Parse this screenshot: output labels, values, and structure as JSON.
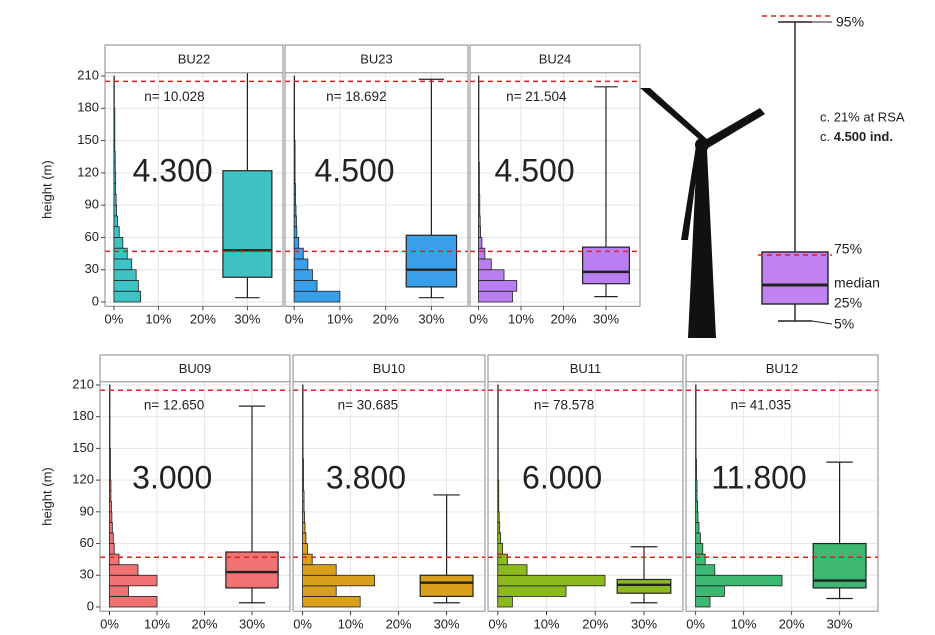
{
  "chart_data": [
    {
      "type": "histbox",
      "title": "BU22",
      "annotation": "n= 10.028",
      "estimate": "4.300",
      "ylabel": "height (m)",
      "show_ytick_labels": true,
      "color": "#3ec2c2",
      "grid": true,
      "bins": [
        0,
        10,
        20,
        30,
        40,
        50,
        60,
        70,
        80,
        90,
        100,
        110,
        120,
        130,
        140,
        150,
        160,
        170,
        180,
        190,
        200,
        210
      ],
      "counts": [
        6,
        5.5,
        5,
        4,
        3,
        2,
        1.2,
        0.8,
        0.6,
        0.5,
        0.4,
        0.4,
        0.3,
        0.3,
        0.2,
        0.2,
        0.2,
        0.2,
        0.1,
        0.1,
        0.1
      ],
      "box": {
        "whisker_low": 4,
        "q1": 23,
        "median": 48,
        "q3": 122,
        "whisker_high": 222
      },
      "reference_lines": [
        47,
        205
      ],
      "ylim": [
        -4,
        213
      ],
      "yticks": [
        0,
        30,
        60,
        90,
        120,
        150,
        180,
        210
      ],
      "xlim": [
        -2,
        38
      ],
      "xticks": [
        {
          "value": 0,
          "label": "0%"
        },
        {
          "value": 10,
          "label": "10%"
        },
        {
          "value": 20,
          "label": "20%"
        },
        {
          "value": 30,
          "label": "30%"
        }
      ]
    },
    {
      "type": "histbox",
      "title": "BU23",
      "annotation": "n= 18.692",
      "estimate": "4.500",
      "show_ytick_labels": false,
      "color": "#3a9fe8",
      "grid": true,
      "bins": [
        0,
        10,
        20,
        30,
        40,
        50,
        60,
        70,
        80,
        90,
        100,
        110,
        120,
        130,
        140,
        150,
        160,
        170,
        180,
        190,
        200,
        210
      ],
      "counts": [
        10,
        5,
        4,
        3,
        2,
        1,
        0.6,
        0.5,
        0.4,
        0.3,
        0.3,
        0.2,
        0.2,
        0.2,
        0.2,
        0.1,
        0.1,
        0.1,
        0.1,
        0.1,
        0.1
      ],
      "box": {
        "whisker_low": 4,
        "q1": 14,
        "median": 30,
        "q3": 62,
        "whisker_high": 207
      },
      "reference_lines": [
        47,
        205
      ],
      "ylim": [
        -4,
        213
      ],
      "yticks": [
        0,
        30,
        60,
        90,
        120,
        150,
        180,
        210
      ],
      "xlim": [
        -2,
        38
      ],
      "xticks": [
        {
          "value": 0,
          "label": "0%"
        },
        {
          "value": 10,
          "label": "10%"
        },
        {
          "value": 20,
          "label": "20%"
        },
        {
          "value": 30,
          "label": "30%"
        }
      ]
    },
    {
      "type": "histbox",
      "title": "BU24",
      "annotation": "n= 21.504",
      "estimate": "4.500",
      "show_ytick_labels": false,
      "color": "#b97ef0",
      "grid": true,
      "bins": [
        0,
        10,
        20,
        30,
        40,
        50,
        60,
        70,
        80,
        90,
        100,
        110,
        120,
        130,
        140,
        150,
        160,
        170,
        180,
        190,
        200,
        210
      ],
      "counts": [
        8,
        9,
        6,
        3,
        1.5,
        0.8,
        0.5,
        0.4,
        0.3,
        0.3,
        0.2,
        0.2,
        0.2,
        0.1,
        0.1,
        0.1,
        0.1,
        0.1,
        0.1,
        0.1,
        0.1
      ],
      "box": {
        "whisker_low": 5,
        "q1": 17,
        "median": 28,
        "q3": 51,
        "whisker_high": 200
      },
      "reference_lines": [
        47,
        205
      ],
      "ylim": [
        -4,
        213
      ],
      "yticks": [
        0,
        30,
        60,
        90,
        120,
        150,
        180,
        210
      ],
      "xlim": [
        -2,
        38
      ],
      "xticks": [
        {
          "value": 0,
          "label": "0%"
        },
        {
          "value": 10,
          "label": "10%"
        },
        {
          "value": 20,
          "label": "20%"
        },
        {
          "value": 30,
          "label": "30%"
        }
      ]
    },
    {
      "type": "histbox",
      "title": "BU09",
      "annotation": "n= 12.650",
      "estimate": "3.000",
      "ylabel": "height (m)",
      "show_ytick_labels": true,
      "color": "#f07272",
      "grid": true,
      "bins": [
        0,
        10,
        20,
        30,
        40,
        50,
        60,
        70,
        80,
        90,
        100,
        110,
        120,
        130,
        140,
        150,
        160,
        170,
        180,
        190,
        200,
        210
      ],
      "counts": [
        10,
        4,
        10,
        6,
        2,
        1,
        0.8,
        0.6,
        0.5,
        0.4,
        0.3,
        0.3,
        0.2,
        0.2,
        0.2,
        0.1,
        0.1,
        0.1,
        0.1,
        0.1,
        0.1
      ],
      "box": {
        "whisker_low": 4,
        "q1": 18,
        "median": 33,
        "q3": 52,
        "whisker_high": 190
      },
      "reference_lines": [
        47,
        205
      ],
      "ylim": [
        -4,
        213
      ],
      "yticks": [
        0,
        30,
        60,
        90,
        120,
        150,
        180,
        210
      ],
      "xlim": [
        -2,
        38
      ],
      "xticks": [
        {
          "value": 0,
          "label": "0%"
        },
        {
          "value": 10,
          "label": "10%"
        },
        {
          "value": 20,
          "label": "20%"
        },
        {
          "value": 30,
          "label": "30%"
        }
      ]
    },
    {
      "type": "histbox",
      "title": "BU10",
      "annotation": "n= 30.685",
      "estimate": "3.800",
      "show_ytick_labels": false,
      "color": "#d9a01e",
      "grid": true,
      "bins": [
        0,
        10,
        20,
        30,
        40,
        50,
        60,
        70,
        80,
        90,
        100,
        110,
        120,
        130,
        140,
        150,
        160,
        170,
        180,
        190,
        200,
        210
      ],
      "counts": [
        12,
        7,
        15,
        7,
        2,
        1,
        0.7,
        0.5,
        0.4,
        0.3,
        0.3,
        0.2,
        0.2,
        0.2,
        0.1,
        0.1,
        0.1,
        0.1,
        0.1,
        0.1,
        0.1
      ],
      "box": {
        "whisker_low": 4,
        "q1": 10,
        "median": 23,
        "q3": 30,
        "whisker_high": 106
      },
      "reference_lines": [
        47,
        205
      ],
      "ylim": [
        -4,
        213
      ],
      "yticks": [
        0,
        30,
        60,
        90,
        120,
        150,
        180,
        210
      ],
      "xlim": [
        -2,
        38
      ],
      "xticks": [
        {
          "value": 0,
          "label": "0%"
        },
        {
          "value": 10,
          "label": "10%"
        },
        {
          "value": 20,
          "label": "20%"
        },
        {
          "value": 30,
          "label": "30%"
        }
      ]
    },
    {
      "type": "histbox",
      "title": "BU11",
      "annotation": "n= 78.578",
      "estimate": "6.000",
      "show_ytick_labels": false,
      "color": "#8cba1e",
      "grid": true,
      "bins": [
        0,
        10,
        20,
        30,
        40,
        50,
        60,
        70,
        80,
        90,
        100,
        110,
        120,
        130,
        140,
        150,
        160,
        170,
        180,
        190,
        200,
        210
      ],
      "counts": [
        3,
        14,
        22,
        6,
        2,
        1,
        0.6,
        0.4,
        0.3,
        0.2,
        0.2,
        0.2,
        0.1,
        0.1,
        0.1,
        0.1,
        0.1,
        0.1,
        0.1,
        0.1,
        0.1
      ],
      "box": {
        "whisker_low": 4,
        "q1": 13,
        "median": 21,
        "q3": 26,
        "whisker_high": 57
      },
      "reference_lines": [
        47,
        205
      ],
      "ylim": [
        -4,
        213
      ],
      "yticks": [
        0,
        30,
        60,
        90,
        120,
        150,
        180,
        210
      ],
      "xlim": [
        -2,
        38
      ],
      "xticks": [
        {
          "value": 0,
          "label": "0%"
        },
        {
          "value": 10,
          "label": "10%"
        },
        {
          "value": 20,
          "label": "20%"
        },
        {
          "value": 30,
          "label": "30%"
        }
      ]
    },
    {
      "type": "histbox",
      "title": "BU12",
      "annotation": "n= 41.035",
      "estimate": "11.800",
      "show_ytick_labels": false,
      "color": "#3cb872",
      "grid": true,
      "bins": [
        0,
        10,
        20,
        30,
        40,
        50,
        60,
        70,
        80,
        90,
        100,
        110,
        120,
        130,
        140,
        150,
        160,
        170,
        180,
        190,
        200,
        210
      ],
      "counts": [
        3,
        6,
        18,
        4,
        2,
        1.5,
        1,
        0.7,
        0.5,
        0.4,
        0.3,
        0.3,
        0.2,
        0.2,
        0.1,
        0.1,
        0.1,
        0.1,
        0.1,
        0.1,
        0.1
      ],
      "box": {
        "whisker_low": 8,
        "q1": 18,
        "median": 25,
        "q3": 60,
        "whisker_high": 137
      },
      "reference_lines": [
        47,
        205
      ],
      "ylim": [
        -4,
        213
      ],
      "yticks": [
        0,
        30,
        60,
        90,
        120,
        150,
        180,
        210
      ],
      "xlim": [
        -2,
        38
      ],
      "xticks": [
        {
          "value": 0,
          "label": "0%"
        },
        {
          "value": 10,
          "label": "10%"
        },
        {
          "value": 20,
          "label": "20%"
        },
        {
          "value": 30,
          "label": "30%"
        }
      ]
    }
  ],
  "legend_diagram": {
    "p95": "95%",
    "note": "c. 21% at RSA",
    "count_prefix": "c. ",
    "count": "4.500 ind.",
    "p75": "75%",
    "median": "median",
    "p25": "25%",
    "p5": "5%"
  }
}
